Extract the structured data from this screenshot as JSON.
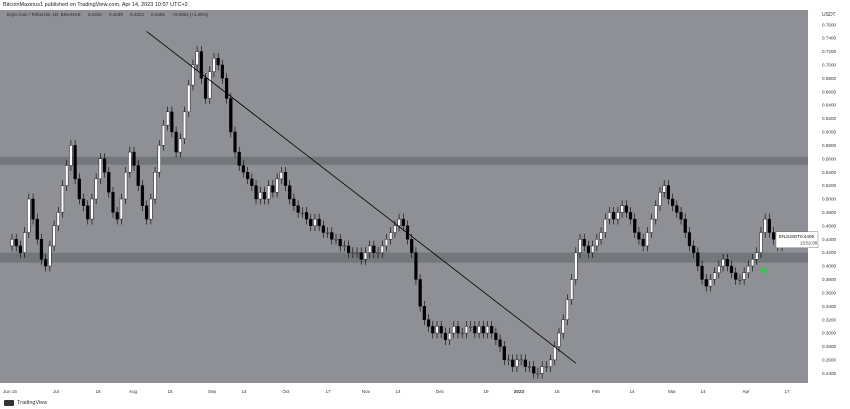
{
  "header": {
    "text": "BitcoinMaxinus1 published on TradingView.com, Apr 14, 2023 10:07 UTC+2"
  },
  "legend": {
    "pair": "Enjin Coin / TetherUS, 1D, BINANCE",
    "open": "0.4344",
    "high": "0.4439",
    "low": "0.4313",
    "close": "0.4406",
    "change": "+0.0061 (+1.40%)"
  },
  "footer": {
    "brand": "TradingView"
  },
  "colors": {
    "background": "#8e9096",
    "zone": "#6f7277",
    "candle_up": "#ffffff",
    "candle_down": "#000000",
    "trendline": "#000000",
    "marker": "#2ecc40"
  },
  "chart_data": {
    "type": "candlestick",
    "title": "",
    "ylabel": "USDT",
    "ylim": [
      0.23,
      0.77
    ],
    "yticks": [
      "0.2400",
      "0.2600",
      "0.2800",
      "0.3000",
      "0.3200",
      "0.3400",
      "0.3600",
      "0.3800",
      "0.4000",
      "0.4200",
      "0.4400",
      "0.4600",
      "0.4800",
      "0.5000",
      "0.5200",
      "0.5400",
      "0.5600",
      "0.5800",
      "0.6000",
      "0.6200",
      "0.6400",
      "0.6600",
      "0.6800",
      "0.7000",
      "0.7200",
      "0.7400",
      "0.7600"
    ],
    "xticks": [
      "Jun 15",
      "Jul",
      "18",
      "Aug",
      "15",
      "Sep",
      "14",
      "Oct",
      "17",
      "Nov",
      "14",
      "Dec",
      "19",
      "2023",
      "16",
      "Feb",
      "14",
      "Mar",
      "14",
      "Apr",
      "17"
    ],
    "horizontal_zones": [
      {
        "from": 0.551,
        "to": 0.563
      },
      {
        "from": 0.405,
        "to": 0.42
      }
    ],
    "trendline": {
      "x_start": "Aug 1",
      "y_start": 0.75,
      "x_end": "Jan 27",
      "y_end": 0.255
    },
    "last_price": {
      "label": "ENJUSDT",
      "value": "0.4406",
      "countdown": "15:52:08"
    },
    "marker": {
      "x": "Apr 10",
      "y": 0.393
    },
    "series": [
      {
        "values": [
          0.44,
          0.43,
          0.42,
          0.45,
          0.5,
          0.47,
          0.44,
          0.41,
          0.4,
          0.43,
          0.46,
          0.48,
          0.52,
          0.55,
          0.58,
          0.53,
          0.5,
          0.49,
          0.47,
          0.5,
          0.53,
          0.56,
          0.54,
          0.51,
          0.48,
          0.47,
          0.5,
          0.54,
          0.57,
          0.55,
          0.52,
          0.49,
          0.47,
          0.5,
          0.54,
          0.58,
          0.61,
          0.63,
          0.6,
          0.57,
          0.59,
          0.63,
          0.67,
          0.7,
          0.72,
          0.68,
          0.65,
          0.69,
          0.71,
          0.7,
          0.68,
          0.65,
          0.6,
          0.57,
          0.55,
          0.54,
          0.53,
          0.52,
          0.5,
          0.51,
          0.5,
          0.52,
          0.51,
          0.53,
          0.54,
          0.52,
          0.5,
          0.49,
          0.48,
          0.48,
          0.47,
          0.46,
          0.47,
          0.46,
          0.45,
          0.45,
          0.44,
          0.44,
          0.43,
          0.43,
          0.42,
          0.42,
          0.42,
          0.41,
          0.42,
          0.43,
          0.42,
          0.42,
          0.43,
          0.44,
          0.45,
          0.46,
          0.47,
          0.46,
          0.44,
          0.42,
          0.38,
          0.34,
          0.32,
          0.31,
          0.3,
          0.31,
          0.3,
          0.29,
          0.3,
          0.31,
          0.3,
          0.3,
          0.31,
          0.31,
          0.3,
          0.31,
          0.3,
          0.31,
          0.3,
          0.29,
          0.28,
          0.26,
          0.26,
          0.25,
          0.26,
          0.26,
          0.25,
          0.25,
          0.24,
          0.24,
          0.25,
          0.25,
          0.26,
          0.28,
          0.3,
          0.32,
          0.35,
          0.38,
          0.42,
          0.44,
          0.43,
          0.42,
          0.43,
          0.44,
          0.45,
          0.47,
          0.48,
          0.47,
          0.48,
          0.49,
          0.48,
          0.47,
          0.45,
          0.44,
          0.43,
          0.45,
          0.47,
          0.49,
          0.51,
          0.52,
          0.5,
          0.49,
          0.48,
          0.47,
          0.45,
          0.43,
          0.42,
          0.4,
          0.38,
          0.37,
          0.38,
          0.39,
          0.4,
          0.41,
          0.4,
          0.39,
          0.38,
          0.38,
          0.39,
          0.4,
          0.41,
          0.42,
          0.45,
          0.47,
          0.45,
          0.44,
          0.43,
          0.44
        ]
      }
    ]
  }
}
